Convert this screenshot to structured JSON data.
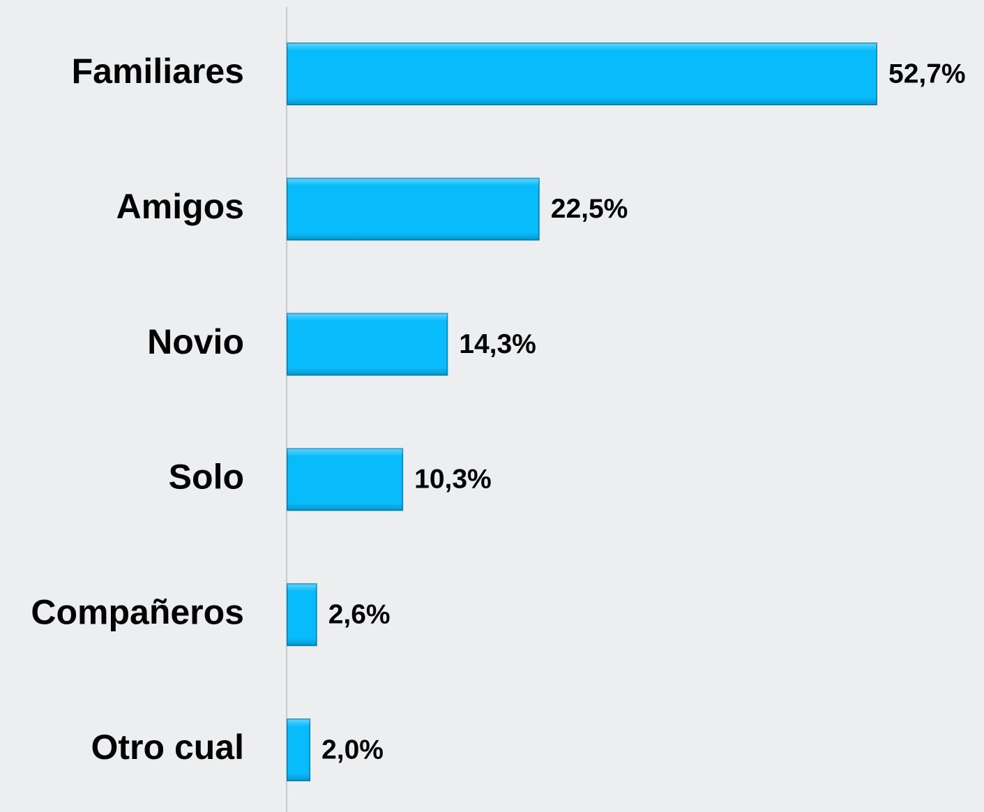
{
  "chart_data": {
    "type": "barh",
    "categories": [
      "Familiares",
      "Amigos",
      "Novio",
      "Solo",
      "Compañeros",
      "Otro cual"
    ],
    "values": [
      52.7,
      22.5,
      14.3,
      10.3,
      2.6,
      2.0
    ],
    "value_labels": [
      "52,7%",
      "22,5%",
      "14,3%",
      "10,3%",
      "2,6%",
      "2,0%"
    ],
    "color": "#08bcfc"
  }
}
